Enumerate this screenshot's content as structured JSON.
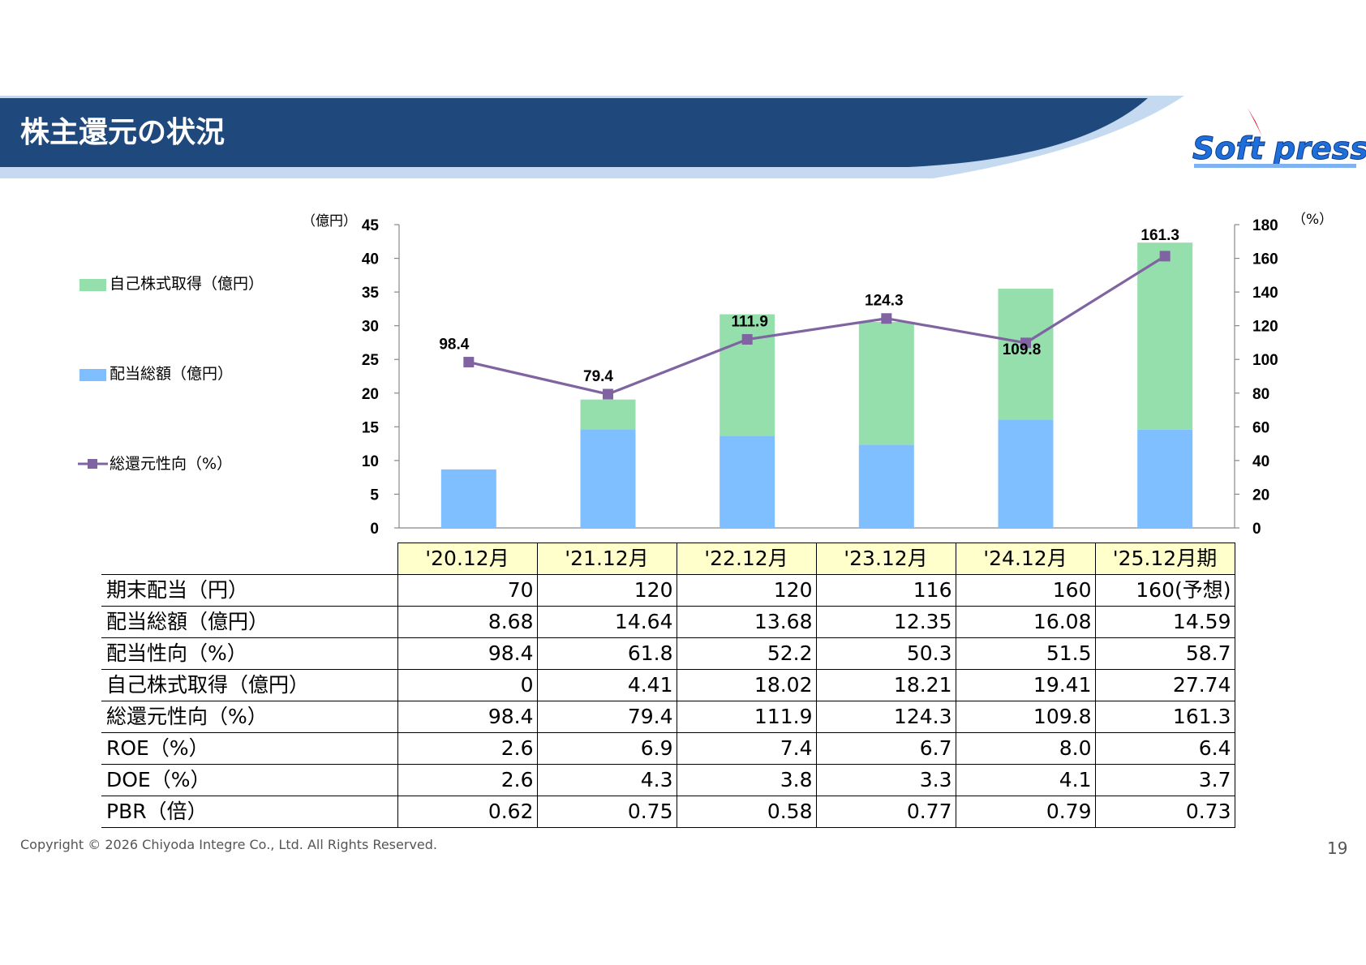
{
  "header": {
    "title": "株主還元の状況",
    "logo_text": "Soft press",
    "colors": {
      "band": "#1f497d",
      "band_light": "#c5d9f1",
      "logo_red": "#e8112d",
      "logo_blue": "#1e6fd9"
    }
  },
  "chart_data": {
    "type": "bar",
    "stacked": true,
    "categories": [
      "'20.12月",
      "'21.12月",
      "'22.12月",
      "'23.12月",
      "'24.12月",
      "'25.12月期"
    ],
    "series": [
      {
        "name": "配当総額（億円）",
        "type": "bar",
        "axis": "left",
        "color": "#80bfff",
        "values": [
          8.68,
          14.64,
          13.68,
          12.35,
          16.08,
          14.59
        ]
      },
      {
        "name": "自己株式取得（億円）",
        "type": "bar",
        "axis": "left",
        "color": "#95dfac",
        "values": [
          0,
          4.41,
          18.02,
          18.21,
          19.41,
          27.74
        ]
      },
      {
        "name": "総還元性向（%）",
        "type": "line",
        "axis": "right",
        "color": "#8064a2",
        "values": [
          98.4,
          79.4,
          111.9,
          124.3,
          109.8,
          161.3
        ],
        "labels": [
          "98.4",
          "79.4",
          "111.9",
          "124.3",
          "109.8",
          "161.3"
        ]
      }
    ],
    "y_left": {
      "unit": "（億円）",
      "ylim": [
        0,
        45
      ],
      "ticks": [
        "0",
        "5",
        "10",
        "15",
        "20",
        "25",
        "30",
        "35",
        "40",
        "45"
      ]
    },
    "y_right": {
      "unit": "（%）",
      "ylim": [
        0,
        180
      ],
      "ticks": [
        "0",
        "20",
        "40",
        "60",
        "80",
        "100",
        "120",
        "140",
        "160",
        "180"
      ]
    },
    "legend_position": "left",
    "grid": false
  },
  "table": {
    "columns": [
      "'20.12月",
      "'21.12月",
      "'22.12月",
      "'23.12月",
      "'24.12月",
      "'25.12月期"
    ],
    "rows": [
      {
        "label": "期末配当（円）",
        "values": [
          "70",
          "120",
          "120",
          "116",
          "160",
          "160(予想)"
        ]
      },
      {
        "label": "配当総額（億円）",
        "values": [
          "8.68",
          "14.64",
          "13.68",
          "12.35",
          "16.08",
          "14.59"
        ]
      },
      {
        "label": "配当性向（%）",
        "values": [
          "98.4",
          "61.8",
          "52.2",
          "50.3",
          "51.5",
          "58.7"
        ]
      },
      {
        "label": "自己株式取得（億円）",
        "values": [
          "0",
          "4.41",
          "18.02",
          "18.21",
          "19.41",
          "27.74"
        ]
      },
      {
        "label": "総還元性向（%）",
        "values": [
          "98.4",
          "79.4",
          "111.9",
          "124.3",
          "109.8",
          "161.3"
        ]
      },
      {
        "label": "ROE（%）",
        "values": [
          "2.6",
          "6.9",
          "7.4",
          "6.7",
          "8.0",
          "6.4"
        ]
      },
      {
        "label": "DOE（%）",
        "values": [
          "2.6",
          "4.3",
          "3.8",
          "3.3",
          "4.1",
          "3.7"
        ]
      },
      {
        "label": "PBR（倍）",
        "values": [
          "0.62",
          "0.75",
          "0.58",
          "0.77",
          "0.79",
          "0.73"
        ]
      }
    ]
  },
  "footer": {
    "copyright": "Copyright © 2026 Chiyoda Integre Co., Ltd. All Rights Reserved.",
    "page": "19"
  }
}
